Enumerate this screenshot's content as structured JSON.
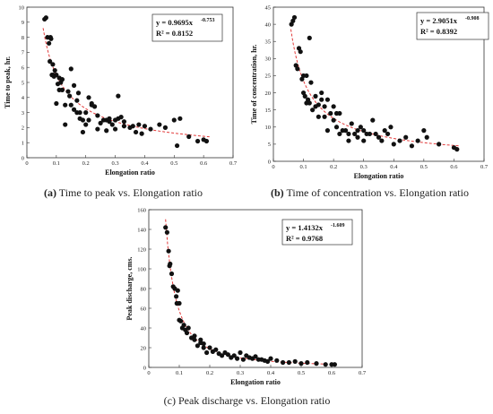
{
  "chart_data": [
    {
      "type": "scatter",
      "id": "a",
      "caption_letter": "(a)",
      "caption_text": " Time to peak vs. Elongation ratio",
      "xlabel": "Elongation ratio",
      "ylabel": "Time to peak, hr.",
      "xlim": [
        0,
        0.7
      ],
      "ylim": [
        0,
        10
      ],
      "xticks": [
        "0",
        "0.1",
        "0.2",
        "0.3",
        "0.4",
        "0.5",
        "0.6",
        "0.7"
      ],
      "yticks": [
        "0",
        "1",
        "2",
        "3",
        "4",
        "5",
        "6",
        "7",
        "8",
        "9",
        "10"
      ],
      "grid": false,
      "equation": "y = 0.9695x",
      "exponent": "-0.753",
      "r2": "R² = 0.8152",
      "fit": {
        "a": 0.9695,
        "b": -0.753,
        "x_from": 0.055,
        "x_to": 0.62,
        "color": "#e23b3b"
      },
      "x": [
        0.06,
        0.065,
        0.07,
        0.075,
        0.078,
        0.08,
        0.082,
        0.085,
        0.088,
        0.09,
        0.092,
        0.095,
        0.1,
        0.1,
        0.105,
        0.11,
        0.11,
        0.115,
        0.12,
        0.12,
        0.13,
        0.13,
        0.14,
        0.145,
        0.15,
        0.15,
        0.16,
        0.16,
        0.17,
        0.17,
        0.175,
        0.18,
        0.18,
        0.19,
        0.19,
        0.2,
        0.2,
        0.21,
        0.21,
        0.22,
        0.22,
        0.23,
        0.24,
        0.24,
        0.25,
        0.26,
        0.27,
        0.27,
        0.28,
        0.28,
        0.29,
        0.3,
        0.3,
        0.31,
        0.31,
        0.32,
        0.33,
        0.33,
        0.35,
        0.36,
        0.37,
        0.38,
        0.39,
        0.4,
        0.42,
        0.45,
        0.47,
        0.5,
        0.51,
        0.52,
        0.55,
        0.58,
        0.6,
        0.61
      ],
      "y": [
        9.2,
        9.3,
        8.0,
        7.6,
        6.4,
        8.0,
        7.9,
        5.5,
        6.2,
        5.5,
        5.4,
        5.8,
        3.6,
        5.5,
        4.9,
        5.3,
        4.5,
        5.0,
        5.2,
        4.5,
        3.5,
        2.2,
        4.4,
        4.1,
        5.9,
        3.5,
        4.8,
        3.2,
        3.8,
        3.0,
        4.3,
        3.0,
        2.6,
        2.5,
        1.7,
        3.0,
        2.2,
        4.0,
        2.5,
        3.5,
        3.6,
        3.4,
        2.8,
        1.9,
        2.3,
        2.5,
        2.5,
        1.8,
        2.4,
        2.6,
        2.2,
        2.5,
        1.9,
        4.1,
        2.6,
        2.7,
        2.4,
        2.1,
        2.0,
        2.1,
        1.7,
        2.2,
        1.6,
        2.1,
        1.9,
        2.2,
        2.0,
        2.5,
        0.8,
        2.6,
        1.4,
        1.1,
        1.2,
        1.1
      ],
      "point_color": "#111111"
    },
    {
      "type": "scatter",
      "id": "b",
      "caption_letter": "(b)",
      "caption_text": " Time of concentration vs. Elongation ratio",
      "xlabel": "Elongation ratio",
      "ylabel": "Time of concentration, hr.",
      "xlim": [
        0,
        0.7
      ],
      "ylim": [
        0,
        45
      ],
      "xticks": [
        "0",
        "0.1",
        "0.2",
        "0.3",
        "0.4",
        "0.5",
        "0.6",
        "0.7"
      ],
      "yticks": [
        "0",
        "5",
        "10",
        "15",
        "20",
        "25",
        "30",
        "35",
        "40",
        "45"
      ],
      "grid": false,
      "equation": "y = 2.9051x",
      "exponent": "-0.908",
      "r2": "R² = 0.8392",
      "fit": {
        "a": 2.9051,
        "b": -0.908,
        "x_from": 0.058,
        "x_to": 0.62,
        "color": "#e23b3b"
      },
      "x": [
        0.06,
        0.065,
        0.07,
        0.075,
        0.08,
        0.085,
        0.09,
        0.095,
        0.1,
        0.1,
        0.105,
        0.11,
        0.11,
        0.115,
        0.12,
        0.12,
        0.125,
        0.13,
        0.14,
        0.14,
        0.15,
        0.15,
        0.16,
        0.16,
        0.17,
        0.17,
        0.18,
        0.18,
        0.19,
        0.2,
        0.2,
        0.21,
        0.21,
        0.22,
        0.22,
        0.23,
        0.24,
        0.25,
        0.25,
        0.26,
        0.27,
        0.28,
        0.28,
        0.29,
        0.3,
        0.3,
        0.31,
        0.32,
        0.33,
        0.34,
        0.35,
        0.36,
        0.37,
        0.38,
        0.39,
        0.4,
        0.42,
        0.44,
        0.46,
        0.48,
        0.5,
        0.51,
        0.55,
        0.6,
        0.61
      ],
      "y": [
        40.0,
        41.0,
        42.0,
        28.0,
        27.0,
        33.0,
        32.0,
        24.0,
        25.0,
        20.0,
        19.0,
        17.0,
        25.0,
        18.0,
        17.0,
        36.0,
        23.0,
        15.0,
        19.0,
        16.0,
        16.5,
        13.0,
        18.0,
        20.0,
        13.0,
        16.0,
        9.0,
        18.0,
        14.0,
        12.0,
        16.0,
        10.0,
        14.0,
        14.0,
        8.0,
        9.0,
        9.0,
        8.0,
        6.0,
        11.0,
        8.0,
        7.0,
        9.0,
        10.0,
        6.0,
        9.0,
        8.0,
        8.0,
        12.0,
        8.0,
        7.0,
        6.0,
        9.0,
        8.0,
        10.0,
        5.0,
        6.0,
        7.0,
        4.5,
        6.0,
        9.0,
        7.0,
        5.0,
        4.0,
        3.5
      ],
      "point_color": "#111111"
    },
    {
      "type": "scatter",
      "id": "c",
      "caption_letter": "",
      "caption_text": "(c) Peak discharge vs. Elongation ratio",
      "xlabel": "Elongation ratio",
      "ylabel": "Peak discharge, cms.",
      "xlim": [
        0,
        0.7
      ],
      "ylim": [
        0,
        160
      ],
      "xticks": [
        "0",
        "0.1",
        "0.2",
        "0.3",
        "0.4",
        "0.5",
        "0.6",
        "0.7"
      ],
      "yticks": [
        "0",
        "20",
        "40",
        "60",
        "80",
        "100",
        "120",
        "140",
        "160"
      ],
      "grid": false,
      "equation": "y = 1.4132x",
      "exponent": "-1.609",
      "r2": "R² = 0.9768",
      "fit": {
        "a": 1.4132,
        "b": -1.609,
        "x_from": 0.055,
        "x_to": 0.62,
        "color": "#e23b3b"
      },
      "x": [
        0.055,
        0.06,
        0.065,
        0.068,
        0.07,
        0.075,
        0.08,
        0.085,
        0.09,
        0.092,
        0.095,
        0.1,
        0.1,
        0.105,
        0.11,
        0.115,
        0.12,
        0.125,
        0.13,
        0.14,
        0.15,
        0.15,
        0.16,
        0.17,
        0.17,
        0.18,
        0.18,
        0.19,
        0.2,
        0.21,
        0.22,
        0.23,
        0.24,
        0.25,
        0.26,
        0.27,
        0.28,
        0.29,
        0.3,
        0.31,
        0.32,
        0.33,
        0.34,
        0.35,
        0.36,
        0.37,
        0.38,
        0.39,
        0.4,
        0.42,
        0.44,
        0.46,
        0.48,
        0.5,
        0.52,
        0.55,
        0.58,
        0.6,
        0.61
      ],
      "y": [
        142.0,
        137.0,
        118.0,
        103.0,
        105.0,
        95.0,
        82.0,
        80.0,
        72.0,
        65.0,
        78.0,
        65.0,
        48.0,
        47.0,
        40.0,
        43.0,
        38.0,
        35.0,
        40.0,
        30.0,
        32.0,
        28.0,
        22.0,
        25.0,
        28.0,
        20.0,
        24.0,
        15.0,
        20.0,
        16.0,
        18.0,
        14.0,
        12.0,
        15.0,
        13.0,
        10.0,
        12.0,
        9.0,
        15.0,
        8.0,
        12.0,
        10.0,
        9.0,
        11.0,
        8.0,
        8.0,
        7.0,
        6.0,
        9.0,
        7.0,
        5.0,
        5.0,
        6.0,
        4.0,
        5.0,
        4.0,
        3.0,
        3.0,
        3.0
      ],
      "point_color": "#111111"
    }
  ]
}
